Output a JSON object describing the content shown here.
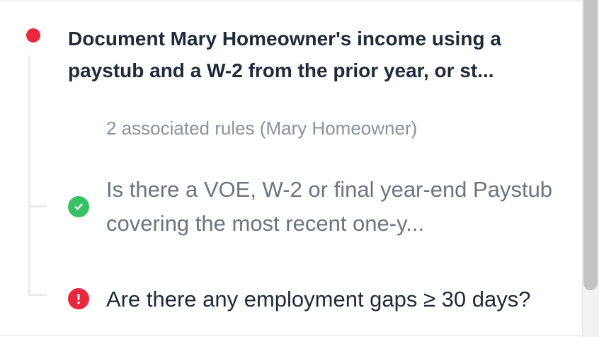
{
  "colors": {
    "status_red": "#e8283f",
    "pass_green": "#38c167",
    "fail_red": "#e8283f"
  },
  "requirement": {
    "status_icon": "red-dot-icon",
    "title": "Document Mary Homeowner's income using a paystub and a W-2 from the prior year, or st...",
    "rules_count": "2 associated rules (Mary Homeowner)"
  },
  "rules": [
    {
      "status": "pass",
      "icon": "check-circle-icon",
      "text": "Is there a VOE, W-2 or final year-end Paystub covering the most recent one-y..."
    },
    {
      "status": "fail",
      "icon": "exclamation-circle-icon",
      "text": "Are there any employment gaps ≥ 30 days?"
    }
  ]
}
